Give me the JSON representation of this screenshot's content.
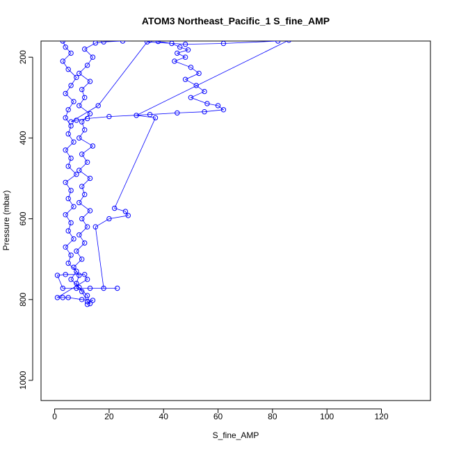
{
  "chart_data": {
    "type": "scatter",
    "title": "ATOM3 Northeast_Pacific_1 S_fine_AMP",
    "xlabel": "S_fine_AMP",
    "ylabel": "Pressure (mbar)",
    "xlim": [
      -5,
      138
    ],
    "ylim": [
      1050,
      160
    ],
    "y_reversed": true,
    "x_ticks": [
      0,
      20,
      40,
      60,
      80,
      100,
      120
    ],
    "y_ticks": [
      200,
      400,
      600,
      800,
      1000
    ],
    "grid": false,
    "series_color": "#0000ff",
    "marker": "open-circle",
    "connected": true,
    "series": [
      {
        "points": [
          [
            3,
            160
          ],
          [
            4,
            175
          ],
          [
            6,
            190
          ],
          [
            3,
            210
          ],
          [
            5,
            230
          ],
          [
            8,
            250
          ],
          [
            6,
            270
          ],
          [
            4,
            290
          ],
          [
            7,
            310
          ],
          [
            5,
            330
          ],
          [
            4,
            350
          ],
          [
            6,
            370
          ],
          [
            5,
            390
          ],
          [
            7,
            410
          ],
          [
            4,
            430
          ],
          [
            6,
            450
          ],
          [
            5,
            470
          ],
          [
            8,
            490
          ],
          [
            4,
            510
          ],
          [
            6,
            530
          ],
          [
            5,
            550
          ],
          [
            7,
            570
          ],
          [
            4,
            590
          ],
          [
            6,
            610
          ],
          [
            5,
            630
          ],
          [
            7,
            650
          ],
          [
            4,
            670
          ],
          [
            6,
            690
          ],
          [
            5,
            710
          ],
          [
            8,
            730
          ],
          [
            6,
            750
          ],
          [
            9,
            770
          ],
          [
            12,
            790
          ],
          [
            13,
            810
          ],
          [
            12,
            805
          ],
          [
            10,
            780
          ],
          [
            8,
            760
          ],
          [
            9,
            740
          ],
          [
            7,
            720
          ],
          [
            10,
            700
          ],
          [
            8,
            680
          ],
          [
            11,
            660
          ],
          [
            9,
            640
          ],
          [
            12,
            620
          ],
          [
            10,
            600
          ],
          [
            13,
            580
          ],
          [
            9,
            560
          ],
          [
            11,
            540
          ],
          [
            10,
            520
          ],
          [
            13,
            500
          ],
          [
            9,
            480
          ],
          [
            12,
            460
          ],
          [
            10,
            440
          ],
          [
            14,
            420
          ],
          [
            9,
            400
          ],
          [
            11,
            380
          ],
          [
            10,
            360
          ],
          [
            13,
            340
          ],
          [
            9,
            320
          ],
          [
            11,
            300
          ],
          [
            10,
            280
          ],
          [
            13,
            260
          ],
          [
            9,
            240
          ],
          [
            12,
            220
          ],
          [
            14,
            200
          ],
          [
            11,
            180
          ],
          [
            15,
            165
          ],
          [
            18,
            162
          ],
          [
            25,
            160
          ],
          [
            35,
            158
          ],
          [
            38,
            161
          ],
          [
            43,
            166
          ],
          [
            46,
            175
          ],
          [
            49,
            182
          ],
          [
            45,
            190
          ],
          [
            48,
            200
          ],
          [
            44,
            210
          ],
          [
            50,
            225
          ],
          [
            53,
            240
          ],
          [
            48,
            255
          ],
          [
            52,
            270
          ],
          [
            55,
            285
          ],
          [
            50,
            300
          ],
          [
            56,
            315
          ],
          [
            60,
            320
          ],
          [
            62,
            330
          ],
          [
            55,
            335
          ],
          [
            45,
            338
          ],
          [
            35,
            342
          ],
          [
            20,
            347
          ],
          [
            12,
            352
          ],
          [
            8,
            356
          ],
          [
            6,
            360
          ],
          [
            16,
            320
          ],
          [
            34,
            162
          ],
          [
            48,
            168
          ],
          [
            62,
            166
          ],
          [
            82,
            160
          ],
          [
            86,
            158
          ],
          [
            30,
            344
          ],
          [
            37,
            350
          ],
          [
            22,
            574
          ],
          [
            26,
            582
          ],
          [
            27,
            592
          ],
          [
            20,
            600
          ],
          [
            15,
            620
          ],
          [
            18,
            772
          ],
          [
            23,
            772
          ],
          [
            13,
            772
          ],
          [
            8,
            772
          ],
          [
            3,
            772
          ],
          [
            1,
            740
          ],
          [
            4,
            738
          ],
          [
            11,
            738
          ],
          [
            12,
            750
          ],
          [
            1,
            795
          ],
          [
            3,
            795
          ],
          [
            5,
            795
          ],
          [
            10,
            800
          ],
          [
            14,
            802
          ],
          [
            12,
            812
          ]
        ]
      }
    ]
  }
}
